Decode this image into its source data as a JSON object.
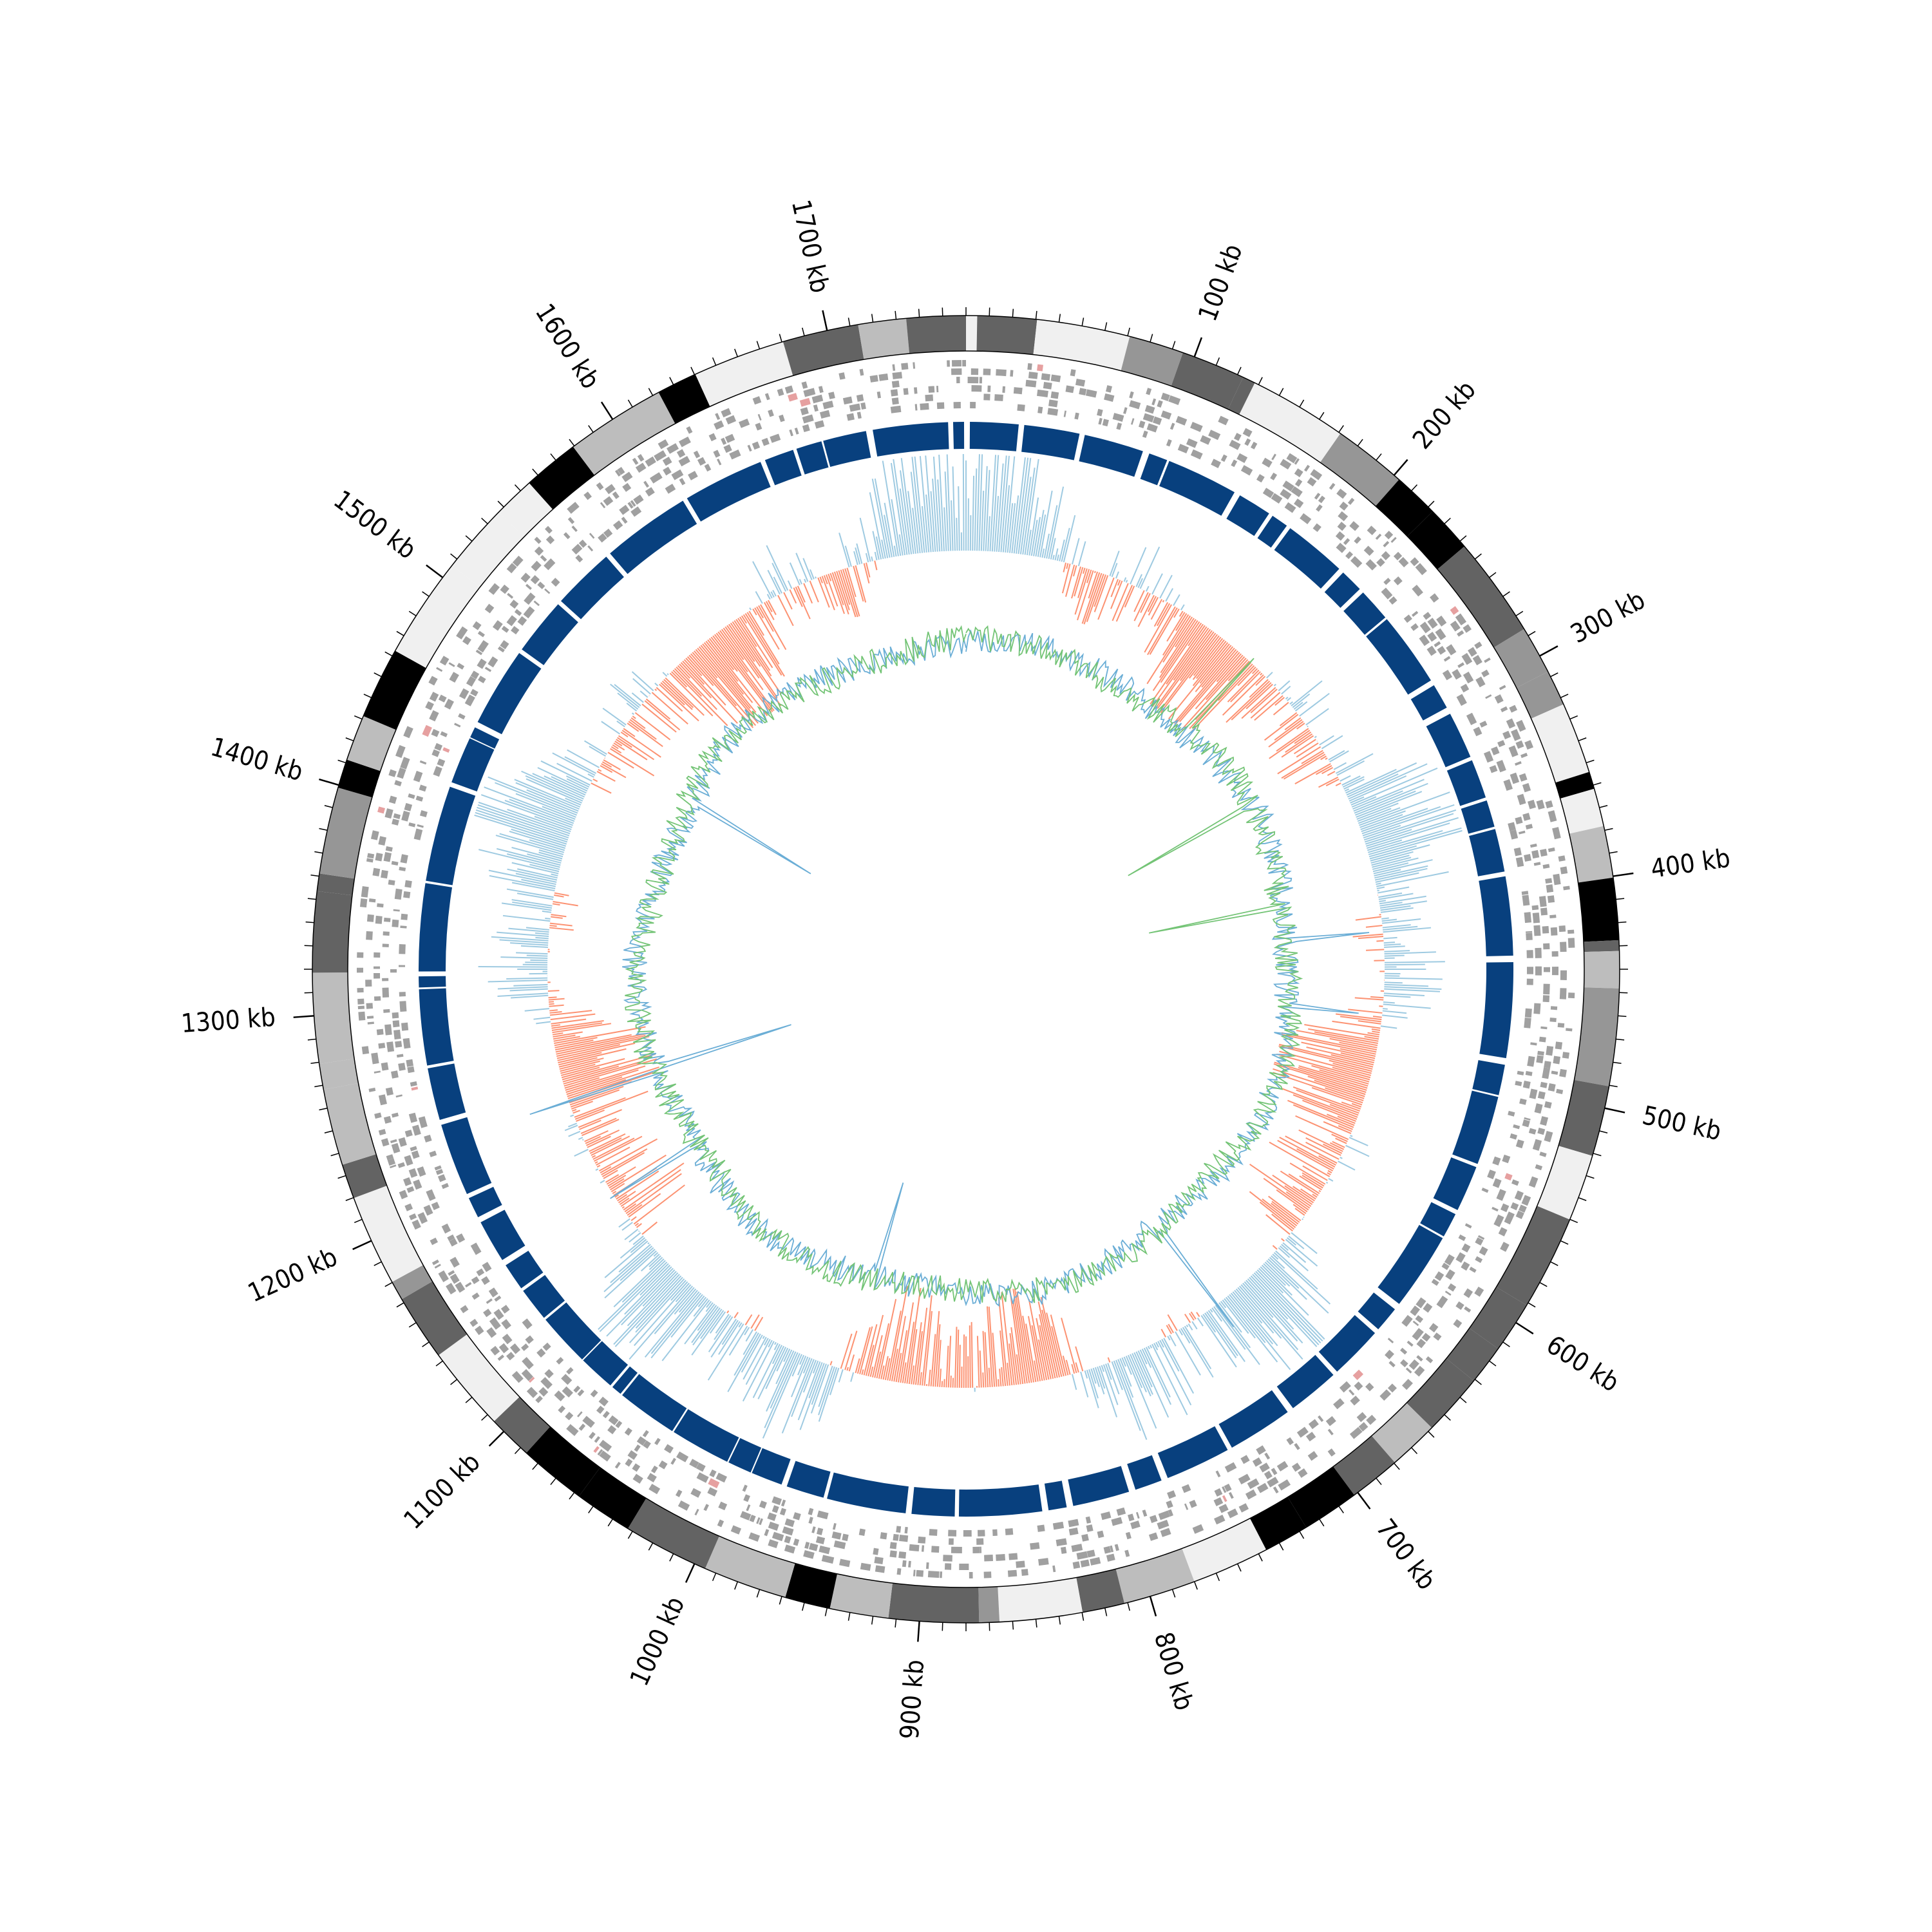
{
  "chart_data": {
    "type": "circular-genome",
    "genome_length_kb": 1760,
    "major_ticks": [
      {
        "kb": 100,
        "label": "100 kb"
      },
      {
        "kb": 200,
        "label": "200 kb"
      },
      {
        "kb": 300,
        "label": "300 kb"
      },
      {
        "kb": 400,
        "label": "400 kb"
      },
      {
        "kb": 500,
        "label": "500 kb"
      },
      {
        "kb": 600,
        "label": "600 kb"
      },
      {
        "kb": 700,
        "label": "700 kb"
      },
      {
        "kb": 800,
        "label": "800 kb"
      },
      {
        "kb": 900,
        "label": "900 kb"
      },
      {
        "kb": 1000,
        "label": "1000 kb"
      },
      {
        "kb": 1100,
        "label": "1100 kb"
      },
      {
        "kb": 1200,
        "label": "1200 kb"
      },
      {
        "kb": 1300,
        "label": "1300 kb"
      },
      {
        "kb": 1400,
        "label": "1400 kb"
      },
      {
        "kb": 1500,
        "label": "1500 kb"
      },
      {
        "kb": 1600,
        "label": "1600 kb"
      },
      {
        "kb": 1700,
        "label": "1700 kb"
      }
    ],
    "minor_tick_step_kb": 10,
    "tracks": [
      {
        "name": "ideogram",
        "kind": "bands",
        "colors": [
          "#f0f0f0",
          "#bdbdbd",
          "#969696",
          "#636363",
          "#000000"
        ]
      },
      {
        "name": "features",
        "kind": "stacked-blocks",
        "color": "#a0a0a0",
        "accent": "#e6a0a0"
      },
      {
        "name": "blocks",
        "kind": "blocks",
        "color": "#08407e"
      },
      {
        "name": "signal",
        "kind": "bidirectional-line",
        "positive_color": "#9ecae1",
        "negative_color": "#fc9272"
      },
      {
        "name": "inner",
        "kind": "dual-line",
        "colors": [
          "#6baed6",
          "#74c476"
        ]
      }
    ]
  }
}
